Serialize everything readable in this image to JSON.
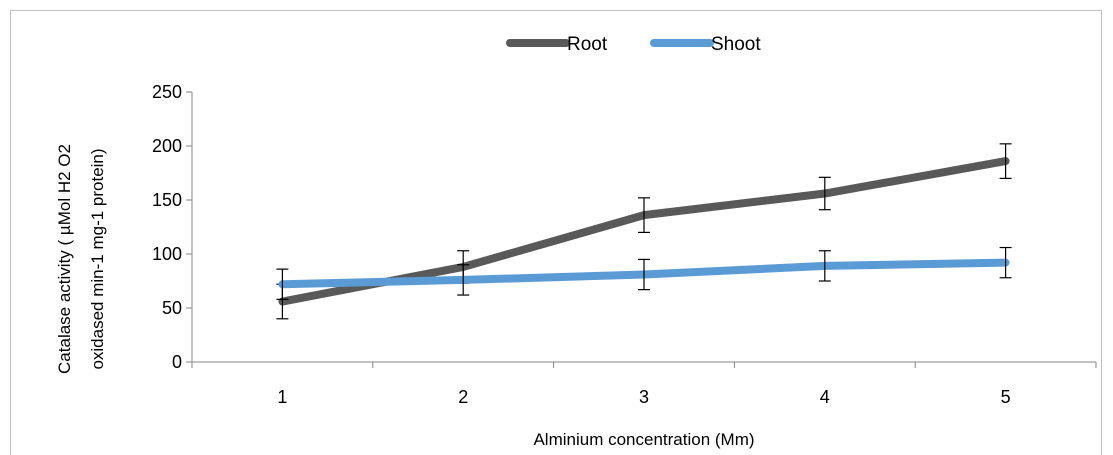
{
  "chart_data": {
    "type": "line",
    "title": "",
    "xlabel": "Alminium concentration (Mm)",
    "ylabel_lines": [
      "Catalase activity  ( µMol H2 O2",
      "oxidased min-1 mg-1 protein)"
    ],
    "categories": [
      "1",
      "2",
      "3",
      "4",
      "5"
    ],
    "ylim": [
      0,
      250
    ],
    "yticks": [
      0,
      50,
      100,
      150,
      200,
      250
    ],
    "ytick_labels": [
      "0",
      "50",
      "100",
      "150",
      "200",
      "250"
    ],
    "grid": false,
    "legend_position": "top",
    "series": [
      {
        "name": "Root",
        "color": "#595959",
        "values": [
          56,
          88,
          136,
          156,
          186
        ],
        "errors": [
          16,
          15,
          16,
          15,
          16
        ]
      },
      {
        "name": "Shoot",
        "color": "#5b9bd5",
        "values": [
          72,
          76,
          81,
          89,
          92
        ],
        "errors": [
          14,
          14,
          14,
          14,
          14
        ]
      }
    ]
  }
}
